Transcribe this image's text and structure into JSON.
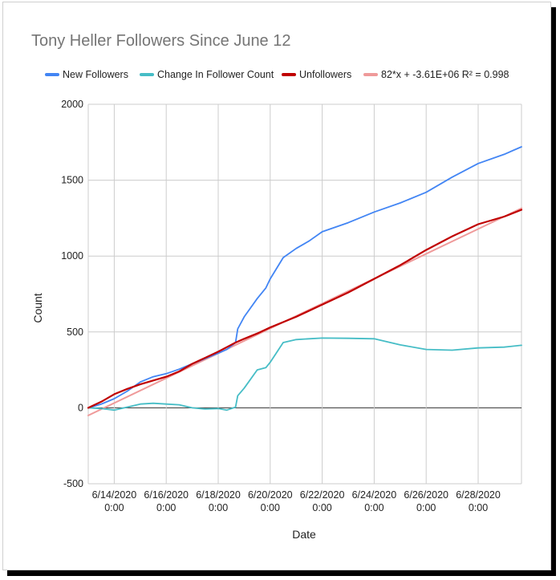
{
  "chart_data": {
    "type": "line",
    "title": "Tony Heller Followers Since June 12",
    "xlabel": "Date",
    "ylabel": "Count",
    "ylim": [
      -500,
      2000
    ],
    "yticks": [
      -500,
      0,
      500,
      1000,
      1500,
      2000
    ],
    "xlim": [
      "2020-06-13",
      "2020-06-29 16:00"
    ],
    "grid": true,
    "legend_position": "top",
    "x_tick_labels": [
      {
        "date": "6/14/2020",
        "time": "0:00"
      },
      {
        "date": "6/16/2020",
        "time": "0:00"
      },
      {
        "date": "6/18/2020",
        "time": "0:00"
      },
      {
        "date": "6/20/2020",
        "time": "0:00"
      },
      {
        "date": "6/22/2020",
        "time": "0:00"
      },
      {
        "date": "6/24/2020",
        "time": "0:00"
      },
      {
        "date": "6/26/2020",
        "time": "0:00"
      },
      {
        "date": "6/28/2020",
        "time": "0:00"
      }
    ],
    "series": [
      {
        "name": "New Followers",
        "color": "#4285f4",
        "points": [
          [
            "2020-06-13 00:00",
            0
          ],
          [
            "2020-06-13 12:00",
            25
          ],
          [
            "2020-06-14 00:00",
            60
          ],
          [
            "2020-06-14 12:00",
            110
          ],
          [
            "2020-06-15 00:00",
            170
          ],
          [
            "2020-06-15 12:00",
            205
          ],
          [
            "2020-06-16 00:00",
            225
          ],
          [
            "2020-06-16 12:00",
            255
          ],
          [
            "2020-06-17 00:00",
            290
          ],
          [
            "2020-06-17 12:00",
            325
          ],
          [
            "2020-06-18 00:00",
            360
          ],
          [
            "2020-06-18 08:00",
            385
          ],
          [
            "2020-06-18 16:00",
            430
          ],
          [
            "2020-06-18 18:00",
            520
          ],
          [
            "2020-06-19 00:00",
            600
          ],
          [
            "2020-06-19 12:00",
            720
          ],
          [
            "2020-06-19 20:00",
            790
          ],
          [
            "2020-06-20 00:00",
            850
          ],
          [
            "2020-06-20 12:00",
            990
          ],
          [
            "2020-06-21 00:00",
            1050
          ],
          [
            "2020-06-21 12:00",
            1100
          ],
          [
            "2020-06-22 00:00",
            1160
          ],
          [
            "2020-06-23 00:00",
            1220
          ],
          [
            "2020-06-24 00:00",
            1290
          ],
          [
            "2020-06-25 00:00",
            1350
          ],
          [
            "2020-06-26 00:00",
            1420
          ],
          [
            "2020-06-27 00:00",
            1520
          ],
          [
            "2020-06-28 00:00",
            1610
          ],
          [
            "2020-06-29 00:00",
            1670
          ],
          [
            "2020-06-29 16:00",
            1720
          ]
        ]
      },
      {
        "name": "Change In Follower Count",
        "color": "#46bdc6",
        "points": [
          [
            "2020-06-13 00:00",
            0
          ],
          [
            "2020-06-13 12:00",
            -5
          ],
          [
            "2020-06-14 00:00",
            -15
          ],
          [
            "2020-06-14 12:00",
            5
          ],
          [
            "2020-06-15 00:00",
            25
          ],
          [
            "2020-06-15 12:00",
            30
          ],
          [
            "2020-06-16 00:00",
            25
          ],
          [
            "2020-06-16 12:00",
            20
          ],
          [
            "2020-06-17 00:00",
            0
          ],
          [
            "2020-06-17 12:00",
            -8
          ],
          [
            "2020-06-18 00:00",
            -5
          ],
          [
            "2020-06-18 08:00",
            -15
          ],
          [
            "2020-06-18 16:00",
            5
          ],
          [
            "2020-06-18 18:00",
            80
          ],
          [
            "2020-06-19 00:00",
            130
          ],
          [
            "2020-06-19 12:00",
            250
          ],
          [
            "2020-06-19 20:00",
            265
          ],
          [
            "2020-06-20 00:00",
            300
          ],
          [
            "2020-06-20 12:00",
            430
          ],
          [
            "2020-06-21 00:00",
            450
          ],
          [
            "2020-06-21 12:00",
            455
          ],
          [
            "2020-06-22 00:00",
            460
          ],
          [
            "2020-06-23 00:00",
            458
          ],
          [
            "2020-06-24 00:00",
            455
          ],
          [
            "2020-06-25 00:00",
            415
          ],
          [
            "2020-06-26 00:00",
            385
          ],
          [
            "2020-06-27 00:00",
            380
          ],
          [
            "2020-06-28 00:00",
            395
          ],
          [
            "2020-06-29 00:00",
            400
          ],
          [
            "2020-06-29 16:00",
            412
          ]
        ]
      },
      {
        "name": "Unfollowers",
        "color": "#c00000",
        "points": [
          [
            "2020-06-13 00:00",
            0
          ],
          [
            "2020-06-13 12:00",
            40
          ],
          [
            "2020-06-14 00:00",
            90
          ],
          [
            "2020-06-14 12:00",
            125
          ],
          [
            "2020-06-15 00:00",
            155
          ],
          [
            "2020-06-15 12:00",
            180
          ],
          [
            "2020-06-16 00:00",
            205
          ],
          [
            "2020-06-16 12:00",
            240
          ],
          [
            "2020-06-17 00:00",
            290
          ],
          [
            "2020-06-17 12:00",
            330
          ],
          [
            "2020-06-18 00:00",
            370
          ],
          [
            "2020-06-18 08:00",
            400
          ],
          [
            "2020-06-18 16:00",
            430
          ],
          [
            "2020-06-19 00:00",
            455
          ],
          [
            "2020-06-19 12:00",
            490
          ],
          [
            "2020-06-20 00:00",
            530
          ],
          [
            "2020-06-21 00:00",
            600
          ],
          [
            "2020-06-22 00:00",
            680
          ],
          [
            "2020-06-23 00:00",
            760
          ],
          [
            "2020-06-24 00:00",
            850
          ],
          [
            "2020-06-25 00:00",
            940
          ],
          [
            "2020-06-26 00:00",
            1040
          ],
          [
            "2020-06-27 00:00",
            1130
          ],
          [
            "2020-06-28 00:00",
            1210
          ],
          [
            "2020-06-29 00:00",
            1260
          ],
          [
            "2020-06-29 16:00",
            1305
          ]
        ]
      },
      {
        "name": "82*x + -3.61E+06 R² = 0.998",
        "color": "#ef9a9a",
        "trendline": true,
        "points": [
          [
            "2020-06-13 00:00",
            -50
          ],
          [
            "2020-06-29 16:00",
            1315
          ]
        ]
      }
    ]
  }
}
